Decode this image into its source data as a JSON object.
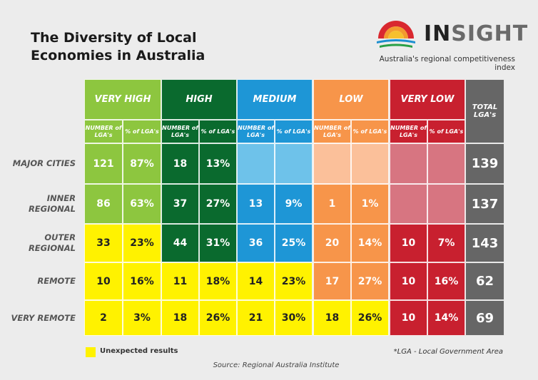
{
  "title_line1": "The Diversity of Local",
  "title_line2": "Economies in Australia",
  "logo": {
    "prefix": "IN",
    "suffix": "SIGHT",
    "tagline": "Australia's regional competitiveness index"
  },
  "colors": {
    "very_high": "#8dc63f",
    "high": "#0a6a2e",
    "medium": "#1e96d6",
    "low": "#f7954a",
    "very_low": "#c8202f",
    "total": "#666666",
    "unexpected": "#fff200",
    "medium_empty": "#6ec2ea",
    "low_empty": "#fbc09a",
    "very_low_empty": "#d77581"
  },
  "chart_data": {
    "type": "table",
    "categories": [
      "VERY HIGH",
      "HIGH",
      "MEDIUM",
      "LOW",
      "VERY LOW"
    ],
    "subheaders": [
      "NUMBER of LGA's",
      "% of LGA's"
    ],
    "total_header": "TOTAL LGA's",
    "rows": [
      {
        "label": "MAJOR CITIES",
        "cells": [
          {
            "n": "121",
            "p": "87%",
            "unexpected": false
          },
          {
            "n": "18",
            "p": "13%",
            "unexpected": false
          },
          {
            "n": "",
            "p": "",
            "unexpected": false
          },
          {
            "n": "",
            "p": "",
            "unexpected": false
          },
          {
            "n": "",
            "p": "",
            "unexpected": false
          }
        ],
        "total": "139"
      },
      {
        "label": "INNER REGIONAL",
        "cells": [
          {
            "n": "86",
            "p": "63%",
            "unexpected": false
          },
          {
            "n": "37",
            "p": "27%",
            "unexpected": false
          },
          {
            "n": "13",
            "p": "9%",
            "unexpected": false
          },
          {
            "n": "1",
            "p": "1%",
            "unexpected": false
          },
          {
            "n": "",
            "p": "",
            "unexpected": false
          }
        ],
        "total": "137"
      },
      {
        "label": "OUTER REGIONAL",
        "cells": [
          {
            "n": "33",
            "p": "23%",
            "unexpected": true
          },
          {
            "n": "44",
            "p": "31%",
            "unexpected": false
          },
          {
            "n": "36",
            "p": "25%",
            "unexpected": false
          },
          {
            "n": "20",
            "p": "14%",
            "unexpected": false
          },
          {
            "n": "10",
            "p": "7%",
            "unexpected": false
          }
        ],
        "total": "143"
      },
      {
        "label": "REMOTE",
        "cells": [
          {
            "n": "10",
            "p": "16%",
            "unexpected": true
          },
          {
            "n": "11",
            "p": "18%",
            "unexpected": true
          },
          {
            "n": "14",
            "p": "23%",
            "unexpected": true
          },
          {
            "n": "17",
            "p": "27%",
            "unexpected": false
          },
          {
            "n": "10",
            "p": "16%",
            "unexpected": false
          }
        ],
        "total": "62"
      },
      {
        "label": "VERY REMOTE",
        "cells": [
          {
            "n": "2",
            "p": "3%",
            "unexpected": true
          },
          {
            "n": "18",
            "p": "26%",
            "unexpected": true
          },
          {
            "n": "21",
            "p": "30%",
            "unexpected": true
          },
          {
            "n": "18",
            "p": "26%",
            "unexpected": true
          },
          {
            "n": "10",
            "p": "14%",
            "unexpected": false
          }
        ],
        "total": "69"
      }
    ]
  },
  "legend": "Unexpected results",
  "footnote": "*LGA - Local Government Area",
  "source": "Source:  Regional Australia Institute"
}
